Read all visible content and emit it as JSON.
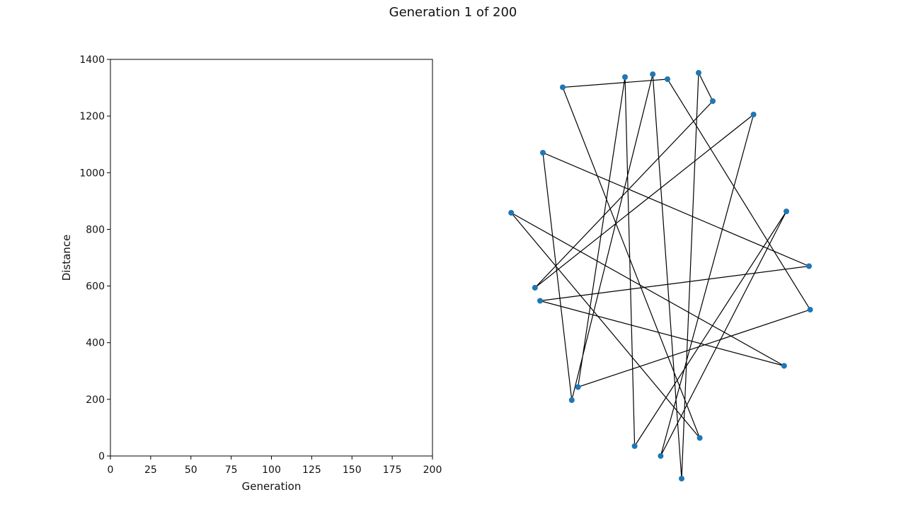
{
  "figure": {
    "title": "Generation 1 of 200"
  },
  "chart_data": [
    {
      "type": "line",
      "xlabel": "Generation",
      "ylabel": "Distance",
      "xlim": [
        0,
        200
      ],
      "ylim": [
        0,
        1400
      ],
      "xticks": [
        0,
        25,
        50,
        75,
        100,
        125,
        150,
        175,
        200
      ],
      "yticks": [
        0,
        200,
        400,
        600,
        800,
        1000,
        1200,
        1400
      ],
      "grid": false,
      "series": []
    },
    {
      "type": "scatter",
      "xlabel": "",
      "ylabel": "",
      "axes_visible": false,
      "points_color": "#1f77b4",
      "line_color": "#000000",
      "cities": [
        {
          "x": 4,
          "y": 858
        },
        {
          "x": 95,
          "y": 1213
        },
        {
          "x": 205,
          "y": 1242
        },
        {
          "x": 254,
          "y": 1250
        },
        {
          "x": 280,
          "y": 1236
        },
        {
          "x": 335,
          "y": 1254
        },
        {
          "x": 360,
          "y": 1174
        },
        {
          "x": 432,
          "y": 1136
        },
        {
          "x": 60,
          "y": 1028
        },
        {
          "x": 490,
          "y": 862
        },
        {
          "x": 530,
          "y": 707
        },
        {
          "x": 532,
          "y": 584
        },
        {
          "x": 486,
          "y": 425
        },
        {
          "x": 46,
          "y": 646
        },
        {
          "x": 55,
          "y": 609
        },
        {
          "x": 122,
          "y": 365
        },
        {
          "x": 111,
          "y": 328
        },
        {
          "x": 337,
          "y": 221
        },
        {
          "x": 222,
          "y": 198
        },
        {
          "x": 268,
          "y": 170
        },
        {
          "x": 305,
          "y": 106
        }
      ],
      "route": [
        0,
        17,
        1,
        4,
        11,
        15,
        2,
        18,
        9,
        19,
        7,
        13,
        6,
        5,
        20,
        3,
        16,
        8,
        10,
        14,
        12,
        0
      ]
    }
  ]
}
